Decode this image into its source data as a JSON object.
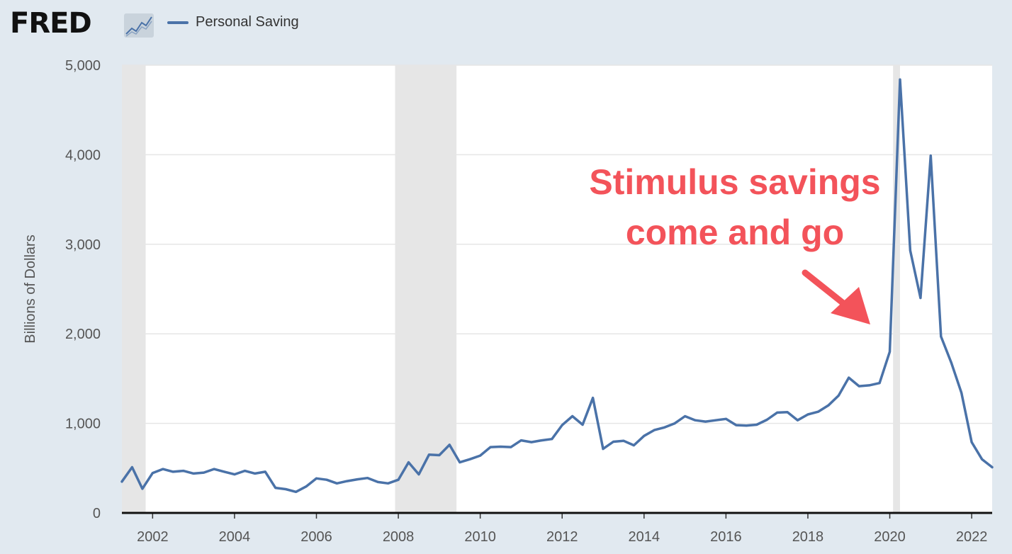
{
  "header": {
    "logo_text": "FRED",
    "logo_icon": "line-graph-icon",
    "legend_label": "Personal Saving"
  },
  "colors": {
    "background": "#e1e9f0",
    "plot_background": "#ffffff",
    "series": "#4a72a8",
    "recession": "#e6e6e6",
    "annotation": "#f3535a",
    "grid": "#e6e6e6",
    "axis_text": "#555555"
  },
  "annotation": {
    "line1": "Stimulus savings",
    "line2": "come and go",
    "arrow_icon": "arrow-down-right-icon"
  },
  "chart_data": {
    "type": "line",
    "title": "",
    "xlabel": "",
    "ylabel": "Billions of Dollars",
    "xlim": [
      2001.25,
      2022.5
    ],
    "ylim": [
      0,
      5000
    ],
    "yticks": [
      0,
      1000,
      2000,
      3000,
      4000,
      5000
    ],
    "ytick_labels": [
      "0",
      "1,000",
      "2,000",
      "3,000",
      "4,000",
      "5,000"
    ],
    "xticks": [
      2002,
      2004,
      2006,
      2008,
      2010,
      2012,
      2014,
      2016,
      2018,
      2020,
      2022
    ],
    "xtick_labels": [
      "2002",
      "2004",
      "2006",
      "2008",
      "2010",
      "2012",
      "2014",
      "2016",
      "2018",
      "2020",
      "2022"
    ],
    "grid": true,
    "legend": "top-left",
    "recessions": [
      [
        2001.25,
        2001.83
      ],
      [
        2007.92,
        2009.42
      ],
      [
        2020.08,
        2020.25
      ]
    ],
    "series": [
      {
        "name": "Personal Saving",
        "x": [
          2001.25,
          2001.5,
          2001.75,
          2002,
          2002.25,
          2002.5,
          2002.75,
          2003,
          2003.25,
          2003.5,
          2003.75,
          2004,
          2004.25,
          2004.5,
          2004.75,
          2005,
          2005.25,
          2005.5,
          2005.75,
          2006,
          2006.25,
          2006.5,
          2006.75,
          2007,
          2007.25,
          2007.5,
          2007.75,
          2008,
          2008.25,
          2008.5,
          2008.75,
          2009,
          2009.25,
          2009.5,
          2009.75,
          2010,
          2010.25,
          2010.5,
          2010.75,
          2011,
          2011.25,
          2011.5,
          2011.75,
          2012,
          2012.25,
          2012.5,
          2012.75,
          2013,
          2013.25,
          2013.5,
          2013.75,
          2014,
          2014.25,
          2014.5,
          2014.75,
          2015,
          2015.25,
          2015.5,
          2015.75,
          2016,
          2016.25,
          2016.5,
          2016.75,
          2017,
          2017.25,
          2017.5,
          2017.75,
          2018,
          2018.25,
          2018.5,
          2018.75,
          2019,
          2019.25,
          2019.5,
          2019.75,
          2020,
          2020.25,
          2020.5,
          2020.75,
          2021,
          2021.25,
          2021.5,
          2021.75,
          2022,
          2022.25,
          2022.5
        ],
        "values": [
          350,
          510,
          270,
          445,
          490,
          460,
          470,
          440,
          450,
          490,
          460,
          430,
          470,
          440,
          460,
          280,
          265,
          235,
          295,
          385,
          370,
          330,
          355,
          375,
          390,
          345,
          330,
          370,
          565,
          430,
          650,
          645,
          760,
          565,
          600,
          640,
          735,
          740,
          735,
          810,
          790,
          810,
          825,
          980,
          1080,
          985,
          1285,
          715,
          795,
          805,
          755,
          860,
          925,
          955,
          1000,
          1080,
          1035,
          1020,
          1035,
          1050,
          980,
          975,
          985,
          1040,
          1120,
          1125,
          1035,
          1100,
          1130,
          1200,
          1310,
          1510,
          1415,
          1425,
          1450,
          1800,
          4840,
          2930,
          2400,
          3990,
          1970,
          1680,
          1340,
          790,
          600,
          510
        ]
      }
    ]
  }
}
